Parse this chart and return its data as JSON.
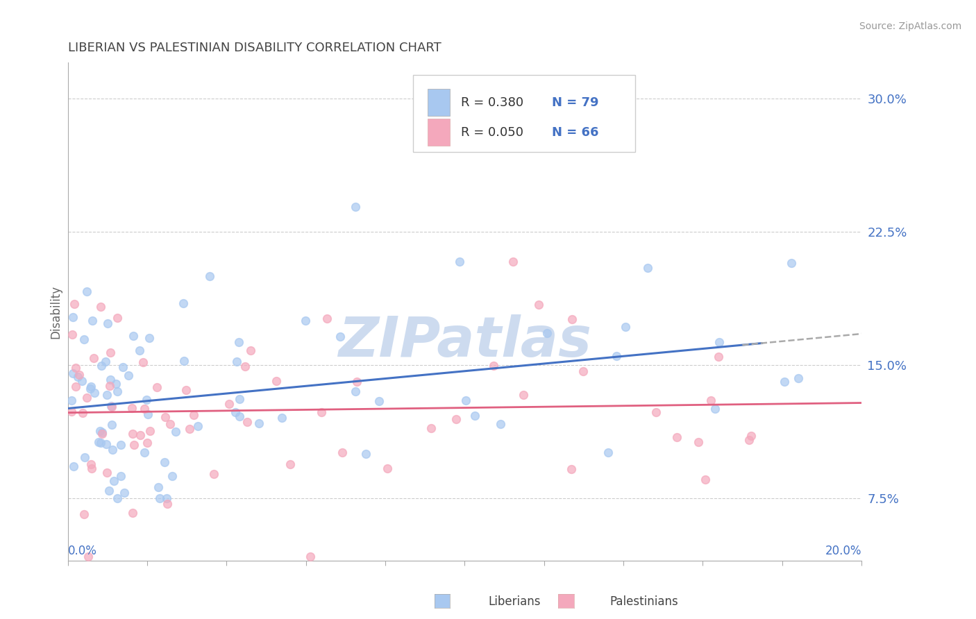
{
  "title": "LIBERIAN VS PALESTINIAN DISABILITY CORRELATION CHART",
  "source": "Source: ZipAtlas.com",
  "ylabel": "Disability",
  "yaxis_labels": [
    "7.5%",
    "15.0%",
    "22.5%",
    "30.0%"
  ],
  "yaxis_values": [
    0.075,
    0.15,
    0.225,
    0.3
  ],
  "xlim": [
    0.0,
    0.2
  ],
  "ylim": [
    0.04,
    0.32
  ],
  "legend_R1": "0.380",
  "legend_N1": "79",
  "legend_R2": "0.050",
  "legend_N2": "66",
  "color_liberian": "#A8C8F0",
  "color_palestinian": "#F4A8BC",
  "color_trend_liberian": "#4472C4",
  "color_trend_palestinian": "#E06080",
  "color_axis_text": "#4472C4",
  "color_dark_text": "#333333",
  "background_color": "#FFFFFF",
  "grid_color": "#CCCCCC",
  "watermark_color": "#C8D8EE"
}
